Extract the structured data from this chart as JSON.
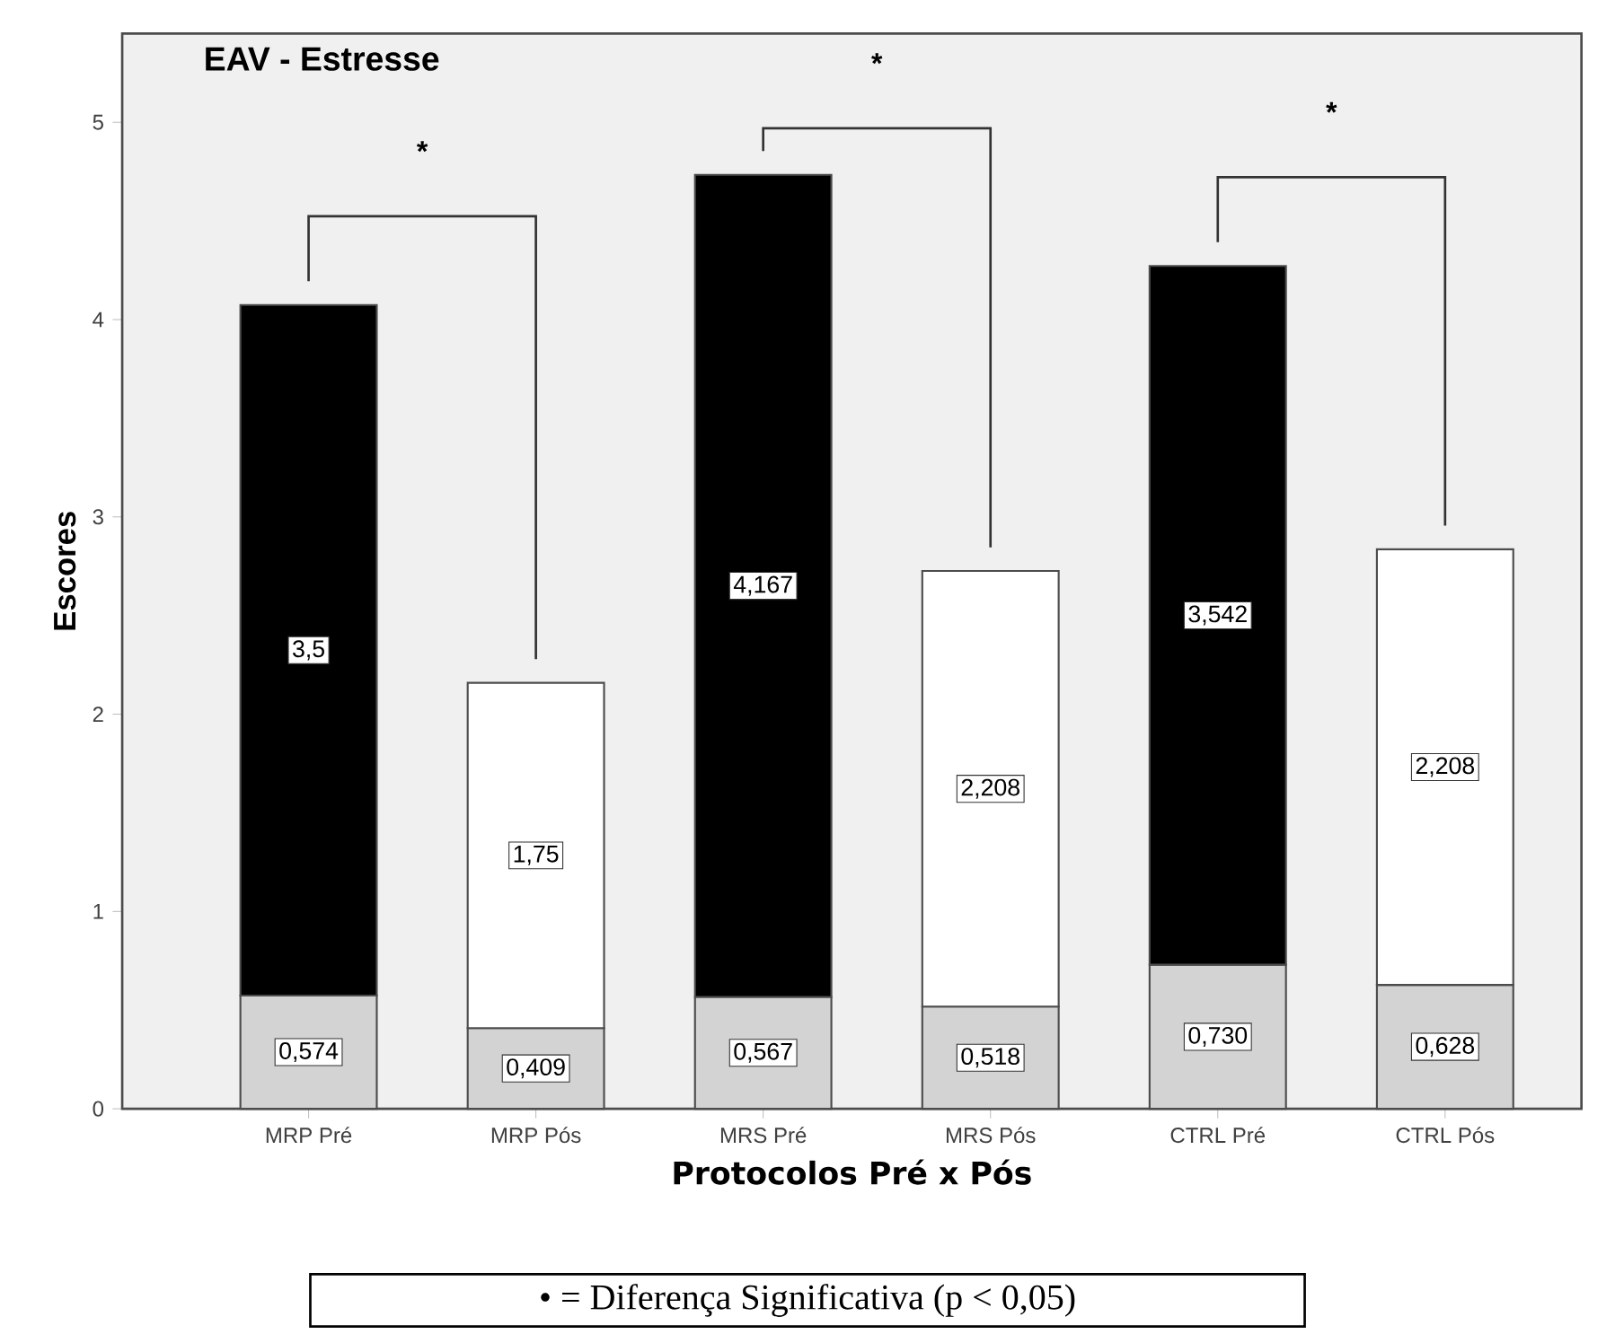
{
  "chart_data": {
    "type": "bar",
    "stacked": true,
    "title": "EAV - Estresse",
    "xlabel": "Protocolos Pré x Pós",
    "ylabel": "Escores",
    "categories": [
      "MRP Pré",
      "MRP Pós",
      "MRS Pré",
      "MRS Pós",
      "CTRL Pré",
      "CTRL Pós"
    ],
    "series": [
      {
        "color": "#d3d3d3",
        "values": [
          0.574,
          0.409,
          0.567,
          0.518,
          0.73,
          0.628
        ],
        "value_labels": [
          "0,574",
          "0,409",
          "0,567",
          "0,518",
          "0,730",
          "0,628"
        ]
      },
      {
        "colors": [
          "#000000",
          "#ffffff",
          "#000000",
          "#ffffff",
          "#000000",
          "#ffffff"
        ],
        "values": [
          3.5,
          1.75,
          4.167,
          2.208,
          3.542,
          2.208
        ],
        "value_labels": [
          "3,5",
          "1,75",
          "4,167",
          "2,208",
          "3,542",
          "2,208"
        ]
      }
    ],
    "ylim": [
      0,
      5.45
    ],
    "yticks": [
      0,
      1,
      2,
      3,
      4,
      5
    ],
    "annotations": [
      "*",
      "*",
      "*",
      "• = Diferença Significativa (p < 0,05)"
    ]
  }
}
